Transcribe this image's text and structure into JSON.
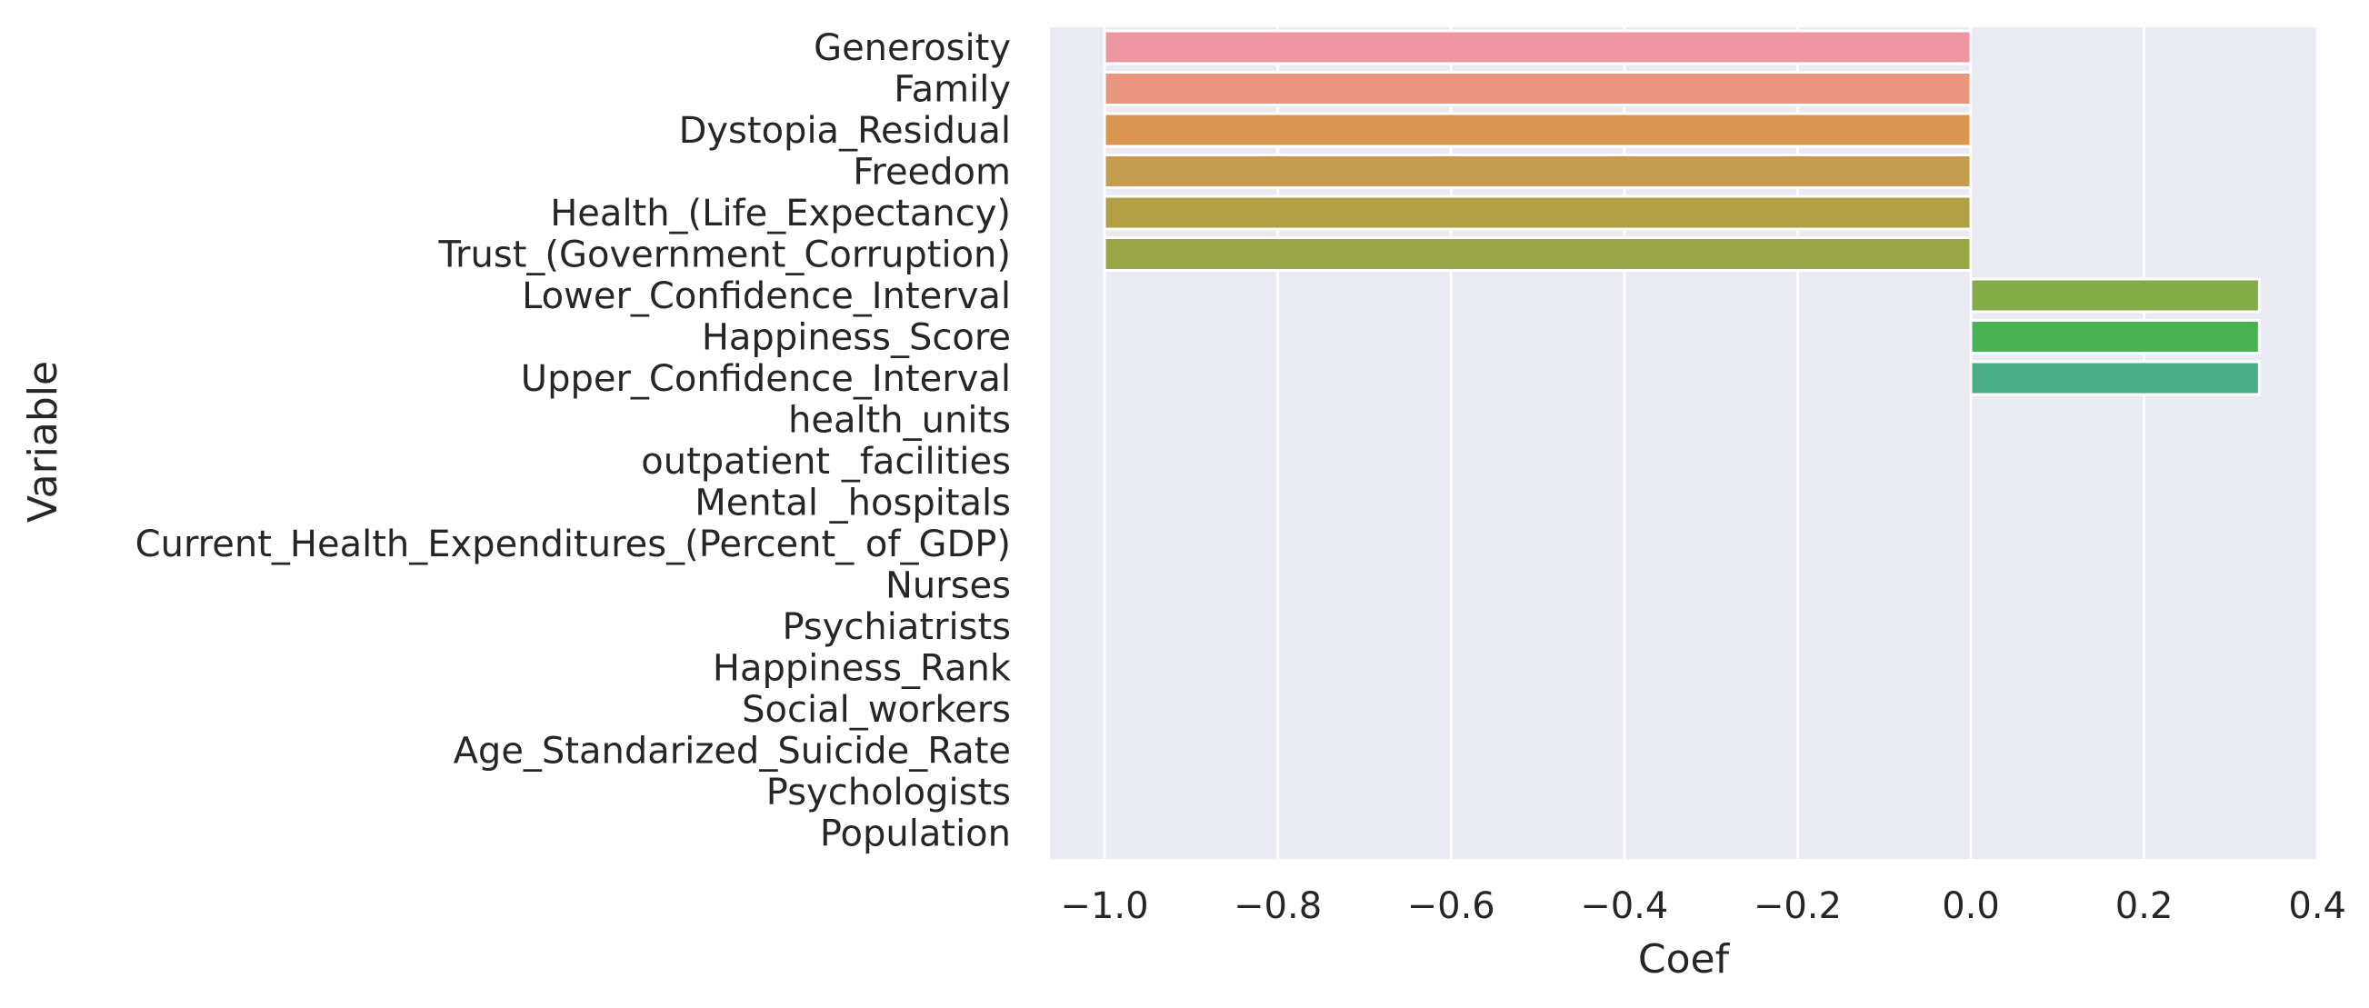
{
  "chart_data": {
    "type": "bar",
    "orientation": "horizontal",
    "xlabel": "Coef",
    "ylabel": "Variable",
    "xlim": [
      -1.06,
      0.4
    ],
    "xticks": [
      -1.0,
      -0.8,
      -0.6,
      -0.4,
      -0.2,
      0.0,
      0.2,
      0.4
    ],
    "xtick_labels": [
      "−1.0",
      "−0.8",
      "−0.6",
      "−0.4",
      "−0.2",
      "0.0",
      "0.2",
      "0.4"
    ],
    "grid": true,
    "background": "#eaeaf2",
    "categories": [
      "Generosity",
      "Family",
      "Dystopia_Residual",
      "Freedom",
      "Health_(Life_Expectancy)",
      "Trust_(Government_Corruption)",
      "Lower_Confidence_Interval",
      "Happiness_Score",
      "Upper_Confidence_Interval",
      "health_units",
      "outpatient _facilities",
      "Mental _hospitals",
      "Current_Health_Expenditures_(Percent_ of_GDP)",
      "Nurses",
      "Psychiatrists",
      "Happiness_Rank",
      "Social_workers",
      "Age_Standarized_Suicide_Rate",
      "Psychologists",
      "Population"
    ],
    "values": [
      -1.0,
      -1.0,
      -1.0,
      -1.0,
      -1.0,
      -1.0,
      0.333,
      0.333,
      0.333,
      0,
      0,
      0,
      0,
      0,
      0,
      0,
      0,
      0,
      0,
      0
    ],
    "colors": [
      "#ed96a2",
      "#e9967f",
      "#da9650",
      "#c59c4d",
      "#b2a044",
      "#9aa747",
      "#83ab47",
      "#47b354",
      "#49ae86",
      "#47ad9c",
      "#4ab0b4",
      "#4eb2ca",
      "#62b4e0",
      "#8ab1ec",
      "#b2a6ee",
      "#cc9aec",
      "#e18ee6",
      "#eb8fd6",
      "#ee93c1",
      "#ee95b3"
    ]
  }
}
